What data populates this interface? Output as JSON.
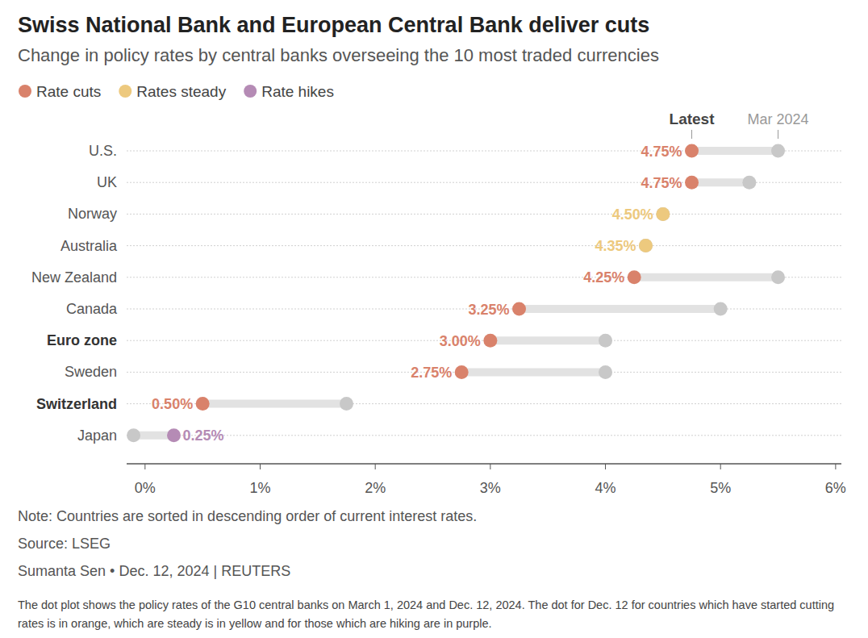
{
  "chart_data": {
    "type": "dot",
    "orientation": "horizontal",
    "title": "Swiss National Bank and European Central Bank deliver cuts",
    "subtitle": "Change in policy rates by central banks overseeing the 10 most traded currencies",
    "categories": [
      "U.S.",
      "UK",
      "Norway",
      "Australia",
      "New Zealand",
      "Canada",
      "Euro zone",
      "Sweden",
      "Switzerland",
      "Japan"
    ],
    "highlight": [
      false,
      false,
      false,
      false,
      false,
      false,
      true,
      false,
      true,
      false
    ],
    "series": [
      {
        "name": "Mar 2024",
        "color": "#c8c8c8",
        "marker": "circle",
        "values": [
          5.5,
          5.25,
          4.5,
          4.35,
          5.5,
          5.0,
          4.0,
          4.0,
          1.75,
          -0.1
        ]
      },
      {
        "name": "Latest",
        "marker": "circle",
        "colors": [
          "#d9826b",
          "#d9826b",
          "#edc97e",
          "#edc97e",
          "#d9826b",
          "#d9826b",
          "#d9826b",
          "#d9826b",
          "#d9826b",
          "#b58bb5"
        ],
        "values": [
          4.75,
          4.75,
          4.5,
          4.35,
          4.25,
          3.25,
          3.0,
          2.75,
          0.5,
          0.25
        ],
        "value_labels": [
          "4.75%",
          "4.75%",
          "4.50%",
          "4.35%",
          "4.25%",
          "3.25%",
          "3.00%",
          "2.75%",
          "0.50%",
          "0.25%"
        ]
      }
    ],
    "data_labels": true,
    "legend": "top-left",
    "legend_entries": [
      {
        "label": "Rate cuts",
        "color": "#d9826b"
      },
      {
        "label": "Rates steady",
        "color": "#edc97e"
      },
      {
        "label": "Rate hikes",
        "color": "#b58bb5"
      }
    ],
    "xlim": [
      -0.16,
      6.05
    ],
    "xticks": [
      {
        "value": 0,
        "label": "0%"
      },
      {
        "value": 1,
        "label": "1%"
      },
      {
        "value": 2,
        "label": "2%"
      },
      {
        "value": 3,
        "label": "3%"
      },
      {
        "value": 4,
        "label": "4%"
      },
      {
        "value": 5,
        "label": "5%"
      },
      {
        "value": 6,
        "label": "6%"
      }
    ],
    "grid": true,
    "note": "Note: Countries are sorted in descending order of current interest rates.",
    "source": "Source: LSEG",
    "byline": "Sumanta Sen • Dec. 12, 2024 | REUTERS",
    "caption": "The dot plot shows the policy rates of the G10 central banks on March 1, 2024 and Dec. 12, 2024. The dot for Dec. 12 for countries which have started cutting rates is in orange, which are steady is in yellow and for those which are hiking are in purple."
  }
}
